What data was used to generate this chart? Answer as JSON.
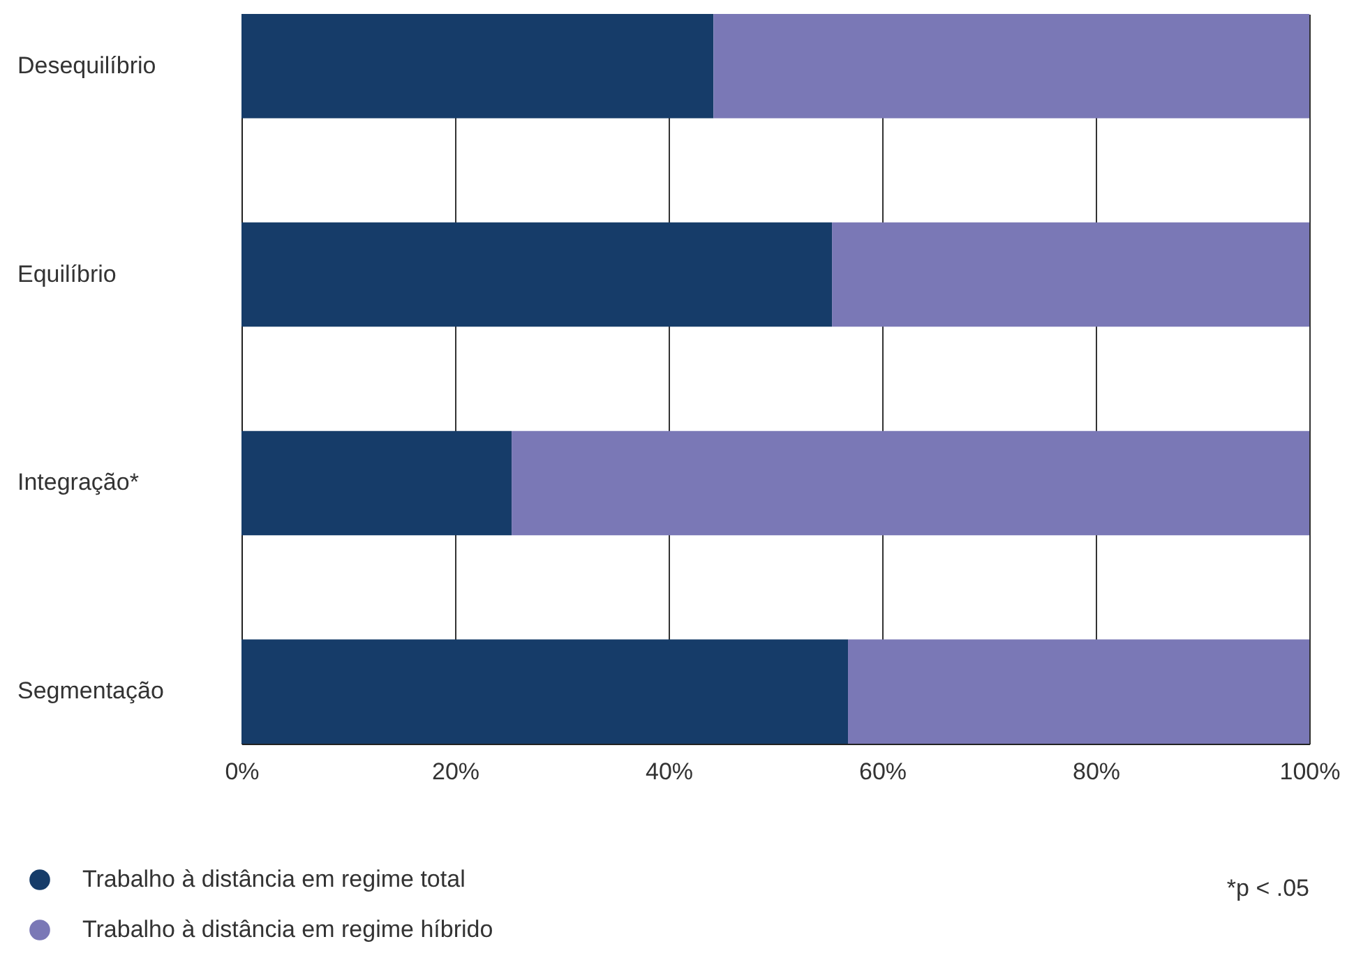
{
  "chart_data": {
    "type": "bar",
    "orientation": "horizontal",
    "stacked": true,
    "categories": [
      "Desequilíbrio",
      "Equilíbrio",
      "Integração*",
      "Segmentação"
    ],
    "series": [
      {
        "name": "Trabalho à distância em regime total",
        "color": "#163c69",
        "values": [
          44.2,
          55.3,
          25.3,
          56.8
        ]
      },
      {
        "name": "Trabalho à distância em regime híbrido",
        "color": "#7a78b6",
        "values": [
          55.8,
          44.7,
          74.7,
          43.2
        ]
      }
    ],
    "xlim": [
      0,
      100
    ],
    "xticks": [
      {
        "value": 0,
        "label": "0%"
      },
      {
        "value": 20,
        "label": "20%"
      },
      {
        "value": 40,
        "label": "40%"
      },
      {
        "value": 60,
        "label": "60%"
      },
      {
        "value": 80,
        "label": "80%"
      },
      {
        "value": 100,
        "label": "100%"
      }
    ],
    "grid": "x",
    "legend": "bottom left",
    "annotations": [
      "*p < .05"
    ]
  }
}
